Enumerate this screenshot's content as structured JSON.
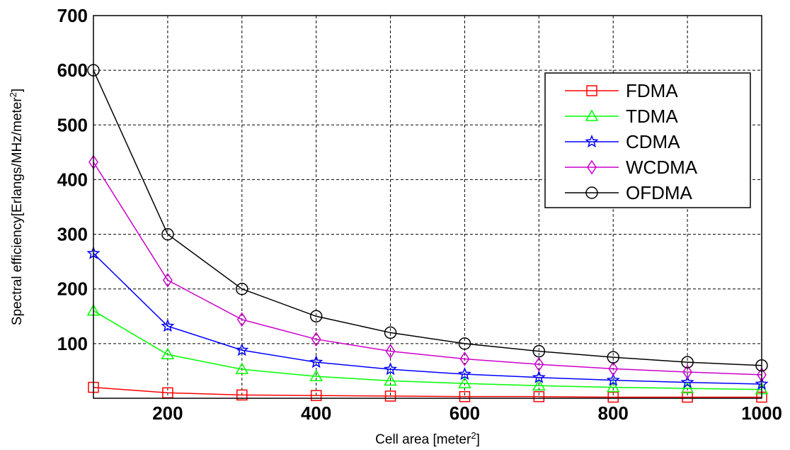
{
  "chart_data": {
    "type": "line",
    "xlabel_main": "Cell area [meter",
    "xlabel_sup": "2",
    "xlabel_tail": "]",
    "ylabel_main": "Spectral efficiency[Erlangs/MHz/meter",
    "ylabel_sup": "2",
    "ylabel_tail": "]",
    "xlim": [
      100,
      1000
    ],
    "ylim": [
      0,
      700
    ],
    "x_ticks": [
      200,
      400,
      600,
      800,
      1000
    ],
    "y_ticks": [
      100,
      200,
      300,
      400,
      500,
      600,
      700
    ],
    "x_grid": [
      200,
      300,
      400,
      500,
      600,
      700,
      800,
      900
    ],
    "y_grid": [
      100,
      200,
      300,
      400,
      500,
      600
    ],
    "grid": true,
    "legend_position": "top-right",
    "x": [
      100,
      200,
      300,
      400,
      500,
      600,
      700,
      800,
      900,
      1000
    ],
    "series": [
      {
        "name": "FDMA",
        "color": "#ff0000",
        "marker": "square",
        "values": [
          20,
          10,
          6,
          5,
          4,
          3,
          3,
          2,
          2,
          2
        ]
      },
      {
        "name": "TDMA",
        "color": "#00ff00",
        "marker": "triangle",
        "values": [
          160,
          80,
          53,
          40,
          32,
          27,
          23,
          20,
          18,
          16
        ]
      },
      {
        "name": "CDMA",
        "color": "#0000ff",
        "marker": "star",
        "values": [
          265,
          132,
          88,
          66,
          53,
          44,
          38,
          33,
          29,
          26
        ]
      },
      {
        "name": "WCDMA",
        "color": "#cc00cc",
        "marker": "diamond",
        "values": [
          432,
          216,
          144,
          108,
          86,
          72,
          62,
          54,
          48,
          43
        ]
      },
      {
        "name": "OFDMA",
        "color": "#000000",
        "marker": "circle",
        "values": [
          600,
          300,
          200,
          150,
          120,
          100,
          86,
          75,
          66,
          60
        ]
      }
    ]
  }
}
